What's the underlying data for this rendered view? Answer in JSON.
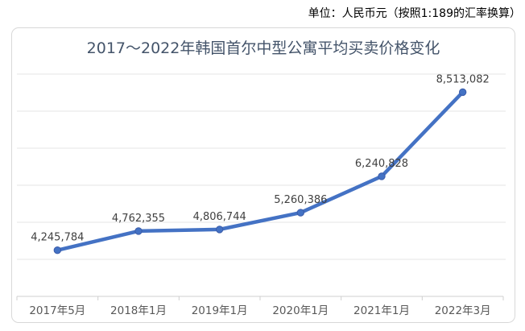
{
  "note": "单位：人民币元（按照1:189的汇率换算）",
  "chart_data": {
    "type": "line",
    "title": "2017～2022年韩国首尔中型公寓平均买卖价格变化",
    "categories": [
      "2017年5月",
      "2018年1月",
      "2019年1月",
      "2020年1月",
      "2021年1月",
      "2022年3月"
    ],
    "values": [
      4245784,
      4762355,
      4806744,
      5260386,
      6240828,
      8513082
    ],
    "data_labels": [
      "4,245,784",
      "4,762,355",
      "4,806,744",
      "5,260,386",
      "6,240,828",
      "8,513,082"
    ],
    "xlabel": "",
    "ylabel": "",
    "ylim": [
      3000000,
      9000000
    ],
    "y_major_step": 1000000,
    "grid": true,
    "legend_position": "none",
    "colors": {
      "line": "#4472C4",
      "marker": "#4472C4",
      "marker_edge": "#3A5BA9",
      "data_label": "#404040",
      "axis_label": "#595959",
      "title": "#44546A",
      "gridline": "#E4E4E4",
      "axis_line": "#CFCFCF",
      "frame_border": "#D8D8D8"
    }
  }
}
